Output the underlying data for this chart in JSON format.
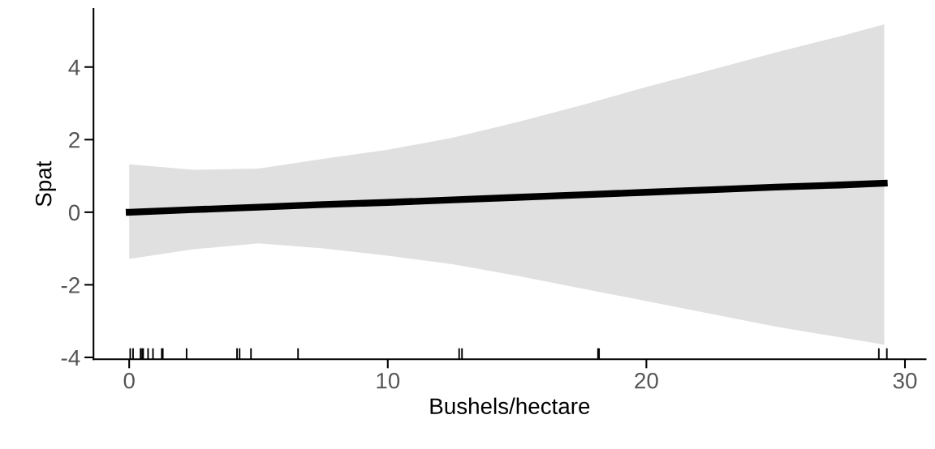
{
  "chart_data": {
    "type": "line",
    "xlabel": "Bushels/hectare",
    "ylabel": "Spat",
    "xlim": [
      -1.38,
      30.8
    ],
    "ylim": [
      -4.05,
      5.6
    ],
    "xticks": [
      0,
      10,
      20,
      30
    ],
    "yticks": [
      -4,
      -2,
      0,
      2,
      4
    ],
    "grid": false,
    "legend": false,
    "series": [
      {
        "type": "line",
        "color": "#000000",
        "x": [
          0,
          2.5,
          5,
          7.5,
          10,
          12.5,
          15,
          17.5,
          20,
          22.5,
          25,
          27.5,
          29.2
        ],
        "values": [
          0.0,
          0.07,
          0.14,
          0.21,
          0.27,
          0.34,
          0.41,
          0.48,
          0.55,
          0.62,
          0.69,
          0.75,
          0.8
        ],
        "upper": [
          1.32,
          1.17,
          1.2,
          1.47,
          1.72,
          2.05,
          2.48,
          2.95,
          3.45,
          3.92,
          4.4,
          4.85,
          5.18
        ],
        "lower": [
          -1.29,
          -1.02,
          -0.86,
          -1.0,
          -1.2,
          -1.43,
          -1.75,
          -2.1,
          -2.45,
          -2.8,
          -3.15,
          -3.45,
          -3.65
        ]
      },
      {
        "type": "bar",
        "color": "#000000",
        "x": [
          0.04,
          0.15,
          0.44,
          0.5,
          0.54,
          0.73,
          0.92,
          1.26,
          1.3,
          2.22,
          4.17,
          4.27,
          4.71,
          6.53,
          12.76,
          12.87,
          18.13,
          18.17,
          28.99,
          29.3
        ],
        "base": [
          -4.05,
          -4.05,
          -4.05,
          -4.05,
          -4.05,
          -4.05,
          -4.05,
          -4.05,
          -4.05,
          -4.05,
          -4.05,
          -4.05,
          -4.05,
          -4.05,
          -4.05,
          -4.05,
          -4.05,
          -4.05,
          -4.05,
          -4.05
        ],
        "values": [
          0.3,
          0.3,
          0.3,
          0.3,
          0.3,
          0.3,
          0.3,
          0.3,
          0.3,
          0.3,
          0.3,
          0.3,
          0.3,
          0.3,
          0.3,
          0.3,
          0.3,
          0.3,
          0.3,
          0.3
        ]
      }
    ]
  }
}
